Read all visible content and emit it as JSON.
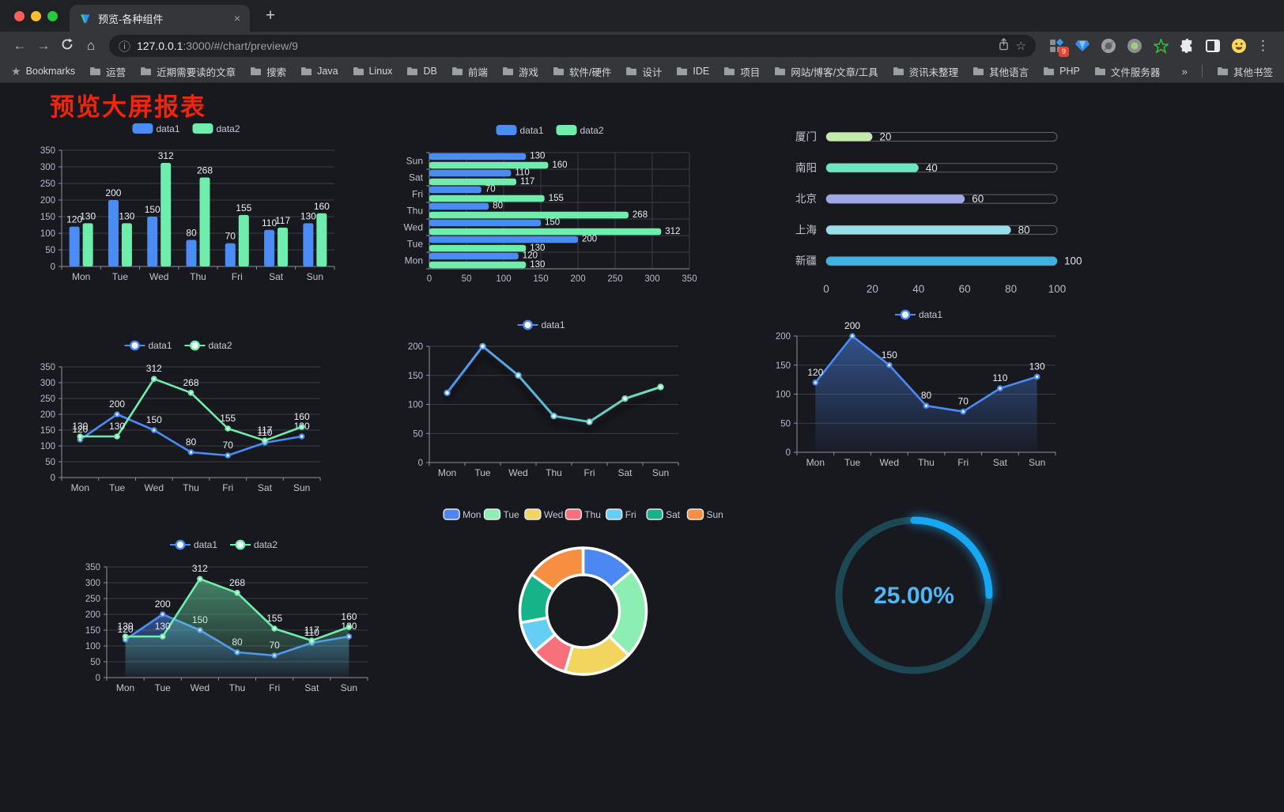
{
  "browser": {
    "tab_title": "预览-各种组件",
    "new_tab_label": "+",
    "close_label": "×",
    "url_host": "127.0.0.1",
    "url_rest": ":3000/#/chart/preview/9",
    "ext_badge": "9",
    "bookmarks_label": "Bookmarks",
    "bookmarks": [
      "运营",
      "近期需要读的文章",
      "搜索",
      "Java",
      "Linux",
      "DB",
      "前端",
      "游戏",
      "软件/硬件",
      "设计",
      "IDE",
      "项目",
      "网站/博客/文章/工具",
      "资讯未整理",
      "其他语言",
      "PHP",
      "文件服务器"
    ],
    "bookmarks_overflow": "»",
    "other_bookmarks": "其他书签"
  },
  "page": {
    "title": "预览大屏报表",
    "title_color": "#f1250c"
  },
  "chart_data": [
    {
      "type": "bar",
      "categories": [
        "Mon",
        "Tue",
        "Wed",
        "Thu",
        "Fri",
        "Sat",
        "Sun"
      ],
      "series": [
        {
          "name": "data1",
          "color": "#4b8bf4",
          "values": [
            120,
            200,
            150,
            80,
            70,
            110,
            130
          ]
        },
        {
          "name": "data2",
          "color": "#6fedad",
          "values": [
            130,
            130,
            312,
            268,
            155,
            117,
            160
          ]
        }
      ],
      "ylim": [
        0,
        350
      ],
      "ystep": 50,
      "legend_position": "top",
      "grid": true
    },
    {
      "type": "hbar",
      "categories": [
        "Mon",
        "Tue",
        "Wed",
        "Thu",
        "Fri",
        "Sat",
        "Sun"
      ],
      "series": [
        {
          "name": "data1",
          "color": "#4b8bf4",
          "values": [
            120,
            200,
            150,
            80,
            70,
            110,
            130
          ]
        },
        {
          "name": "data2",
          "color": "#6fedad",
          "values": [
            130,
            130,
            312,
            268,
            155,
            117,
            160
          ]
        }
      ],
      "xlim": [
        0,
        350
      ],
      "xstep": 50,
      "legend_position": "top",
      "grid": true
    },
    {
      "type": "progress",
      "max": 100,
      "axis_ticks": [
        0,
        20,
        40,
        60,
        80,
        100
      ],
      "items": [
        {
          "label": "厦门",
          "value": 20,
          "color": "#c4ebad"
        },
        {
          "label": "南阳",
          "value": 40,
          "color": "#6be6c1"
        },
        {
          "label": "北京",
          "value": 60,
          "color": "#a0a7e6"
        },
        {
          "label": "上海",
          "value": 80,
          "color": "#96dee8"
        },
        {
          "label": "新疆",
          "value": 100,
          "color": "#3fb1e3"
        }
      ]
    },
    {
      "type": "line",
      "categories": [
        "Mon",
        "Tue",
        "Wed",
        "Thu",
        "Fri",
        "Sat",
        "Sun"
      ],
      "series": [
        {
          "name": "data1",
          "color": "#4b8bf4",
          "values": [
            120,
            200,
            150,
            80,
            70,
            110,
            130
          ]
        },
        {
          "name": "data2",
          "color": "#6fedad",
          "values": [
            130,
            130,
            312,
            268,
            155,
            117,
            160
          ]
        }
      ],
      "ylim": [
        0,
        350
      ],
      "ystep": 50,
      "labels": true,
      "legend_position": "top",
      "grid": true
    },
    {
      "type": "line",
      "categories": [
        "Mon",
        "Tue",
        "Wed",
        "Thu",
        "Fri",
        "Sat",
        "Sun"
      ],
      "series": [
        {
          "name": "data1",
          "color": "#4b8bf4",
          "color2": "#6fedad",
          "values": [
            120,
            200,
            150,
            80,
            70,
            110,
            130
          ]
        }
      ],
      "ylim": [
        0,
        200
      ],
      "ystep": 50,
      "labels": false,
      "shadow": true,
      "legend_position": "top",
      "grid": true
    },
    {
      "type": "line",
      "categories": [
        "Mon",
        "Tue",
        "Wed",
        "Thu",
        "Fri",
        "Sat",
        "Sun"
      ],
      "series": [
        {
          "name": "data1",
          "color": "#4b8bf4",
          "values": [
            120,
            200,
            150,
            80,
            70,
            110,
            130
          ],
          "area": true
        }
      ],
      "ylim": [
        0,
        200
      ],
      "ystep": 50,
      "labels": true,
      "legend_position": "top",
      "grid": true
    },
    {
      "type": "line",
      "categories": [
        "Mon",
        "Tue",
        "Wed",
        "Thu",
        "Fri",
        "Sat",
        "Sun"
      ],
      "series": [
        {
          "name": "data1",
          "color": "#4b8bf4",
          "values": [
            120,
            200,
            150,
            80,
            70,
            110,
            130
          ],
          "area": true
        },
        {
          "name": "data2",
          "color": "#6fedad",
          "values": [
            130,
            130,
            312,
            268,
            155,
            117,
            160
          ],
          "area": true
        }
      ],
      "ylim": [
        0,
        350
      ],
      "ystep": 50,
      "labels": true,
      "legend_position": "top",
      "grid": true
    },
    {
      "type": "donut",
      "items": [
        {
          "label": "Mon",
          "value": 120,
          "color": "#4d87f2"
        },
        {
          "label": "Tue",
          "value": 200,
          "color": "#8deeb2"
        },
        {
          "label": "Wed",
          "value": 150,
          "color": "#f2d55f"
        },
        {
          "label": "Thu",
          "value": 80,
          "color": "#f8707c"
        },
        {
          "label": "Fri",
          "value": 70,
          "color": "#66cdf5"
        },
        {
          "label": "Sat",
          "value": 110,
          "color": "#16b389"
        },
        {
          "label": "Sun",
          "value": 130,
          "color": "#f78f42"
        }
      ],
      "border_color": "#ffffff",
      "legend_position": "top"
    },
    {
      "type": "gauge",
      "value": 25,
      "display": "25.00%",
      "bar_color": "#17a7f3",
      "track_color": "#1d4853",
      "text_color": "#4fb6f6"
    }
  ]
}
